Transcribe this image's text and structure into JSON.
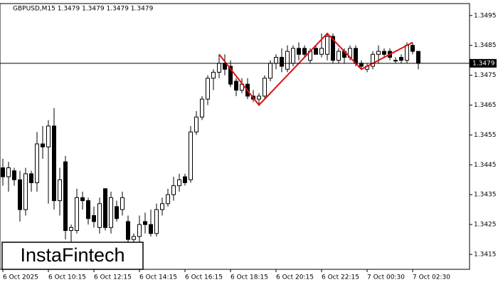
{
  "chart_data": {
    "type": "candlestick",
    "title": "GBPUSD,M15  1.3479 1.3479 1.3479 1.3479",
    "logo": "InstaFintech",
    "categories": [
      "6 Oct 2025",
      null,
      null,
      null,
      null,
      null,
      null,
      null,
      "6 Oct 10:15",
      null,
      null,
      null,
      null,
      null,
      null,
      null,
      "6 Oct 12:15",
      null,
      null,
      null,
      null,
      null,
      null,
      null,
      "6 Oct 14:15",
      null,
      null,
      null,
      null,
      null,
      null,
      null,
      "6 Oct 16:15",
      null,
      null,
      null,
      null,
      null,
      null,
      null,
      "6 Oct 18:15",
      null,
      null,
      null,
      null,
      null,
      null,
      null,
      "6 Oct 20:15",
      null,
      null,
      null,
      null,
      null,
      null,
      null,
      "6 Oct 22:15",
      null,
      null,
      null,
      null,
      null,
      null,
      null,
      "7 Oct 00:30",
      null,
      null,
      null,
      null,
      null,
      null,
      null,
      "7 Oct 02:30",
      null
    ],
    "open": [
      1.3444,
      1.3441,
      1.3443,
      1.344,
      1.343,
      1.3442,
      1.3439,
      1.3452,
      1.3451,
      1.3458,
      1.3433,
      1.3446,
      1.3423,
      1.3423,
      1.3434,
      1.3433,
      1.3428,
      1.3424,
      1.3437,
      1.3424,
      1.3431,
      1.343,
      1.3426,
      1.342,
      1.3421,
      1.3426,
      1.3425,
      1.3422,
      1.343,
      1.3432,
      1.3435,
      1.3438,
      1.3441,
      1.344,
      1.3456,
      1.3461,
      1.3467,
      1.3474,
      1.3476,
      1.3479,
      1.3478,
      1.3473,
      1.347,
      1.3472,
      1.3468,
      1.3467,
      1.3468,
      1.3474,
      1.3479,
      1.3481,
      1.3477,
      1.3479,
      1.3484,
      1.3484,
      1.348,
      1.3484,
      1.3482,
      1.3482,
      1.3488,
      1.348,
      1.3483,
      1.3481,
      1.3484,
      1.3479,
      1.3477,
      1.3478,
      1.3482,
      1.3483,
      1.3483,
      1.348,
      1.3481,
      1.348,
      1.3485,
      1.3483
    ],
    "high": [
      1.3447,
      1.3446,
      1.3444,
      1.3443,
      1.3444,
      1.3443,
      1.3456,
      1.3458,
      1.346,
      1.3464,
      1.3444,
      1.3448,
      1.3425,
      1.3437,
      1.3436,
      1.3434,
      1.3431,
      1.3434,
      1.3437,
      1.3436,
      1.3433,
      1.3436,
      1.3428,
      1.3422,
      1.3428,
      1.3429,
      1.343,
      1.3432,
      1.3434,
      1.3437,
      1.3441,
      1.3442,
      1.3442,
      1.3458,
      1.3463,
      1.3468,
      1.3475,
      1.3477,
      1.3482,
      1.3482,
      1.348,
      1.3474,
      1.3474,
      1.3474,
      1.347,
      1.3469,
      1.3475,
      1.348,
      1.3482,
      1.3484,
      1.3485,
      1.3485,
      1.3486,
      1.3485,
      1.3484,
      1.3485,
      1.3489,
      1.3489,
      1.3489,
      1.3484,
      1.3484,
      1.3485,
      1.3485,
      1.348,
      1.3479,
      1.3483,
      1.3485,
      1.3484,
      1.3484,
      1.3481,
      1.3482,
      1.3486,
      1.3486,
      1.3483
    ],
    "low": [
      1.3438,
      1.3436,
      1.3438,
      1.3426,
      1.3428,
      1.3436,
      1.3436,
      1.3447,
      1.3432,
      1.343,
      1.3428,
      1.342,
      1.3418,
      1.3422,
      1.343,
      1.3425,
      1.3424,
      1.3422,
      1.3423,
      1.3422,
      1.3426,
      1.3428,
      1.3418,
      1.3417,
      1.3419,
      1.3422,
      1.3421,
      1.3421,
      1.3428,
      1.3431,
      1.3433,
      1.3436,
      1.3438,
      1.3439,
      1.3455,
      1.346,
      1.3465,
      1.347,
      1.3474,
      1.3475,
      1.3471,
      1.3468,
      1.3469,
      1.3467,
      1.3466,
      1.3465,
      1.3467,
      1.3473,
      1.3477,
      1.3476,
      1.3476,
      1.3478,
      1.348,
      1.3481,
      1.3479,
      1.3482,
      1.3481,
      1.348,
      1.3479,
      1.3479,
      1.3479,
      1.348,
      1.3478,
      1.3477,
      1.3476,
      1.3477,
      1.3479,
      1.3481,
      1.348,
      1.3479,
      1.3479,
      1.3479,
      1.3482,
      1.3477
    ],
    "close": [
      1.3441,
      1.3444,
      1.344,
      1.343,
      1.3442,
      1.3439,
      1.3452,
      1.3451,
      1.3458,
      1.3433,
      1.344,
      1.3423,
      1.3424,
      1.3434,
      1.3433,
      1.3427,
      1.3426,
      1.3432,
      1.3424,
      1.3434,
      1.3427,
      1.3434,
      1.342,
      1.3421,
      1.3425,
      1.3425,
      1.3422,
      1.343,
      1.3432,
      1.3435,
      1.3438,
      1.344,
      1.3439,
      1.3456,
      1.3461,
      1.3467,
      1.3474,
      1.3476,
      1.3479,
      1.3477,
      1.3472,
      1.347,
      1.3472,
      1.3468,
      1.3467,
      1.3468,
      1.3474,
      1.3479,
      1.3481,
      1.3478,
      1.3483,
      1.3484,
      1.3482,
      1.3482,
      1.3483,
      1.3482,
      1.3484,
      1.3488,
      1.348,
      1.3483,
      1.3481,
      1.3484,
      1.3479,
      1.3478,
      1.3478,
      1.3482,
      1.3483,
      1.3482,
      1.3481,
      1.348,
      1.348,
      1.3485,
      1.3483,
      1.3479
    ],
    "pattern_x": [
      38,
      45,
      57,
      63,
      72
    ],
    "pattern_values": [
      1.3482,
      1.3465,
      1.3489,
      1.3477,
      1.3486
    ],
    "pattern_color": "#e01010",
    "current_price": 1.3479,
    "ylim": [
      1.341,
      1.3499
    ],
    "yticks": [
      1.3495,
      1.3485,
      1.3475,
      1.3465,
      1.3455,
      1.3445,
      1.3435,
      1.3425,
      1.3415
    ],
    "bull_color": "#ffffff",
    "bear_color": "#000000"
  }
}
